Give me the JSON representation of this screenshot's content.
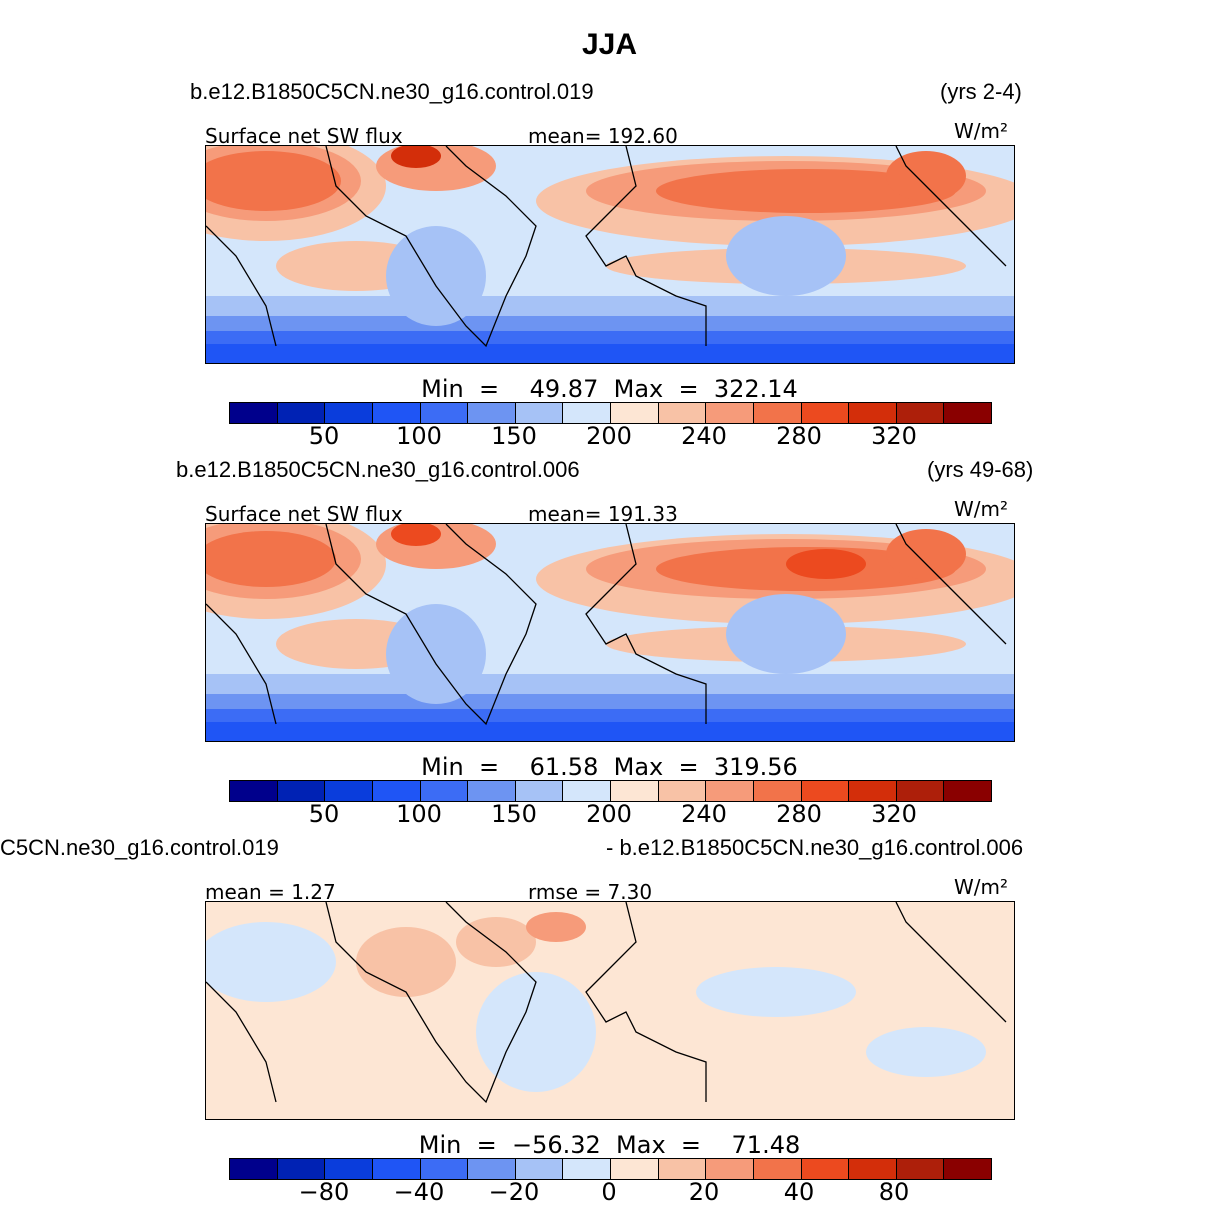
{
  "title": "JJA",
  "colors": [
    "#00008c",
    "#0022b4",
    "#0a3ddc",
    "#1f55f5",
    "#3c6cf5",
    "#6d94f2",
    "#a6c2f6",
    "#d4e6fb",
    "#fde6d4",
    "#f8c2a6",
    "#f69b7a",
    "#f2734a",
    "#ec4a1f",
    "#d32e0a",
    "#ad1f0a",
    "#8a0000"
  ],
  "panels": [
    {
      "case": "b.e12.B1850C5CN.ne30_g16.control.019",
      "years": "(yrs 2-4)",
      "left_label": "Surface  net  SW  flux",
      "center_label": "mean=  192.60",
      "units": "W/m²",
      "min_label": "Min  =    49.87  Max  =  322.14",
      "ticks": [
        "50",
        "100",
        "150",
        "200",
        "240",
        "280",
        "320"
      ]
    },
    {
      "case": "b.e12.B1850C5CN.ne30_g16.control.006",
      "years": "(yrs 49-68)",
      "left_label": "Surface  net  SW  flux",
      "center_label": "mean=  191.33",
      "units": "W/m²",
      "min_label": "Min  =    61.58  Max  =  319.56",
      "ticks": [
        "50",
        "100",
        "150",
        "200",
        "240",
        "280",
        "320"
      ]
    },
    {
      "case_left": "C5CN.ne30_g16.control.019",
      "case_right": "- b.e12.B1850C5CN.ne30_g16.control.006",
      "left_label": "mean =     1.27",
      "center_label": "rmse  =     7.30",
      "units": "W/m²",
      "min_label": "Min  =  −56.32  Max  =    71.48",
      "ticks": [
        "−80",
        "−40",
        "−20",
        "0",
        "20",
        "40",
        "80"
      ]
    }
  ]
}
